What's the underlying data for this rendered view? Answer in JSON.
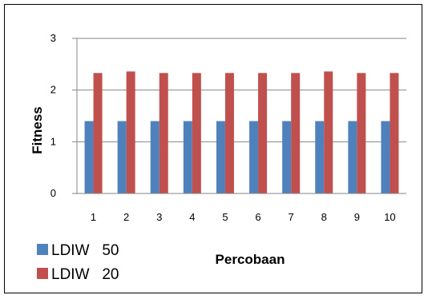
{
  "chart_data": {
    "type": "bar",
    "categories": [
      "1",
      "2",
      "3",
      "4",
      "5",
      "6",
      "7",
      "8",
      "9",
      "10"
    ],
    "series": [
      {
        "name": "LDIW   50",
        "color": "#4f81bd",
        "values": [
          1.4,
          1.4,
          1.4,
          1.4,
          1.4,
          1.4,
          1.4,
          1.4,
          1.4,
          1.4
        ]
      },
      {
        "name": "LDIW   20",
        "color": "#c0504d",
        "values": [
          2.33,
          2.36,
          2.33,
          2.33,
          2.33,
          2.33,
          2.33,
          2.36,
          2.33,
          2.33
        ]
      }
    ],
    "xlabel": "Percobaan",
    "ylabel": "Fitness",
    "ylim": [
      0,
      3
    ],
    "yticks": [
      "0",
      "1",
      "2",
      "3"
    ],
    "grid": true,
    "legend_position": "bottom-left"
  }
}
